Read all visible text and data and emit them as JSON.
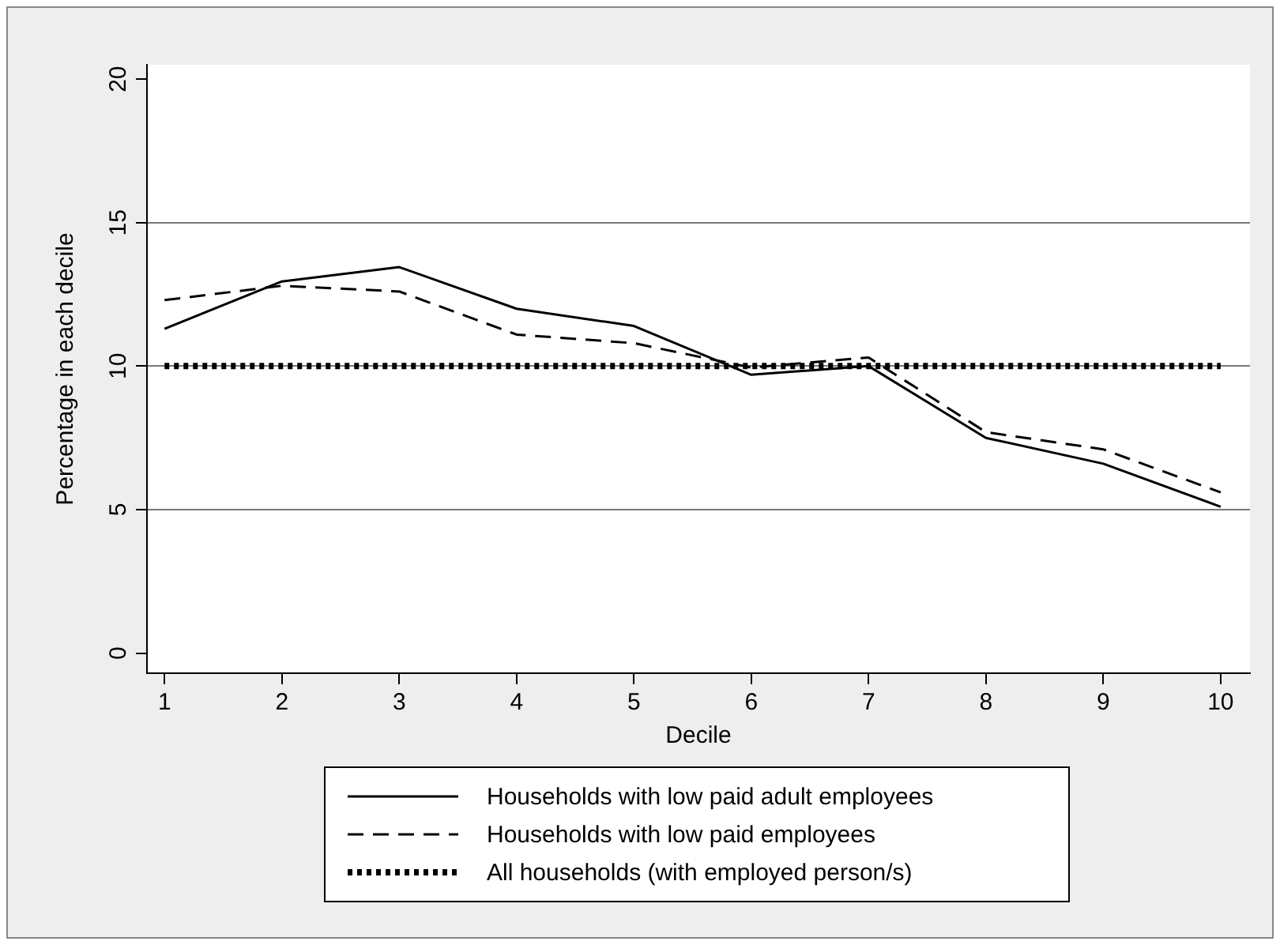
{
  "chart_data": {
    "type": "line",
    "xlabel": "Decile",
    "ylabel": "Percentage in each decile",
    "x": [
      1,
      2,
      3,
      4,
      5,
      6,
      7,
      8,
      9,
      10
    ],
    "xlim": [
      0.85,
      10.25
    ],
    "xticks": [
      1,
      2,
      3,
      4,
      5,
      6,
      7,
      8,
      9,
      10
    ],
    "ylim": [
      -0.7,
      20.5
    ],
    "yticks": [
      0,
      5,
      10,
      15,
      20
    ],
    "grid": "y",
    "legend": "bottom",
    "marker": "none",
    "series": [
      {
        "name": "Households with low paid adult employees",
        "color": "#000000",
        "line_style": "solid",
        "values": [
          11.3,
          12.95,
          13.45,
          12.0,
          11.4,
          9.7,
          10.0,
          7.5,
          6.6,
          5.1
        ]
      },
      {
        "name": "Households with low paid employees",
        "color": "#000000",
        "line_style": "dashed",
        "values": [
          12.3,
          12.8,
          12.6,
          11.1,
          10.8,
          9.95,
          10.3,
          7.7,
          7.1,
          5.6
        ]
      },
      {
        "name": "All households (with employed person/s)",
        "color": "#000000",
        "line_style": "dotted",
        "values": [
          10,
          10,
          10,
          10,
          10,
          10,
          10,
          10,
          10,
          10
        ]
      }
    ]
  }
}
